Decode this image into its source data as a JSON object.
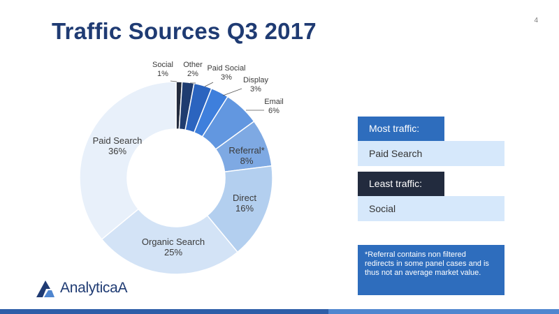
{
  "slide": {
    "page_number": "4",
    "title": "Traffic Sources Q3 2017"
  },
  "chart_data": {
    "type": "donut",
    "title": "",
    "slices": [
      {
        "label": "Social",
        "value": 1,
        "value_label": "1%",
        "color": "#222b3e"
      },
      {
        "label": "Other",
        "value": 2,
        "value_label": "2%",
        "color": "#1f3c70"
      },
      {
        "label": "Paid Social",
        "value": 3,
        "value_label": "3%",
        "color": "#2b64bf"
      },
      {
        "label": "Display",
        "value": 3,
        "value_label": "3%",
        "color": "#3e7fdc"
      },
      {
        "label": "Email",
        "value": 6,
        "value_label": "6%",
        "color": "#6297e0"
      },
      {
        "label": "Referral*",
        "value": 8,
        "value_label": "8%",
        "color": "#7ea9e3"
      },
      {
        "label": "Direct",
        "value": 16,
        "value_label": "16%",
        "color": "#b3cfef"
      },
      {
        "label": "Organic Search",
        "value": 25,
        "value_label": "25%",
        "color": "#d3e3f6"
      },
      {
        "label": "Paid Search",
        "value": 36,
        "value_label": "36%",
        "color": "#e8f0fa"
      }
    ]
  },
  "panels": {
    "most": {
      "label": "Most traffic:",
      "value": "Paid Search",
      "color": "#2e6dbd"
    },
    "least": {
      "label": "Least traffic:",
      "value": "Social",
      "color": "#222b3e"
    }
  },
  "note": "*Referral contains non filtered redirects in some panel cases and is thus not an average market value.",
  "logo": {
    "text": "AnalyticaA"
  }
}
